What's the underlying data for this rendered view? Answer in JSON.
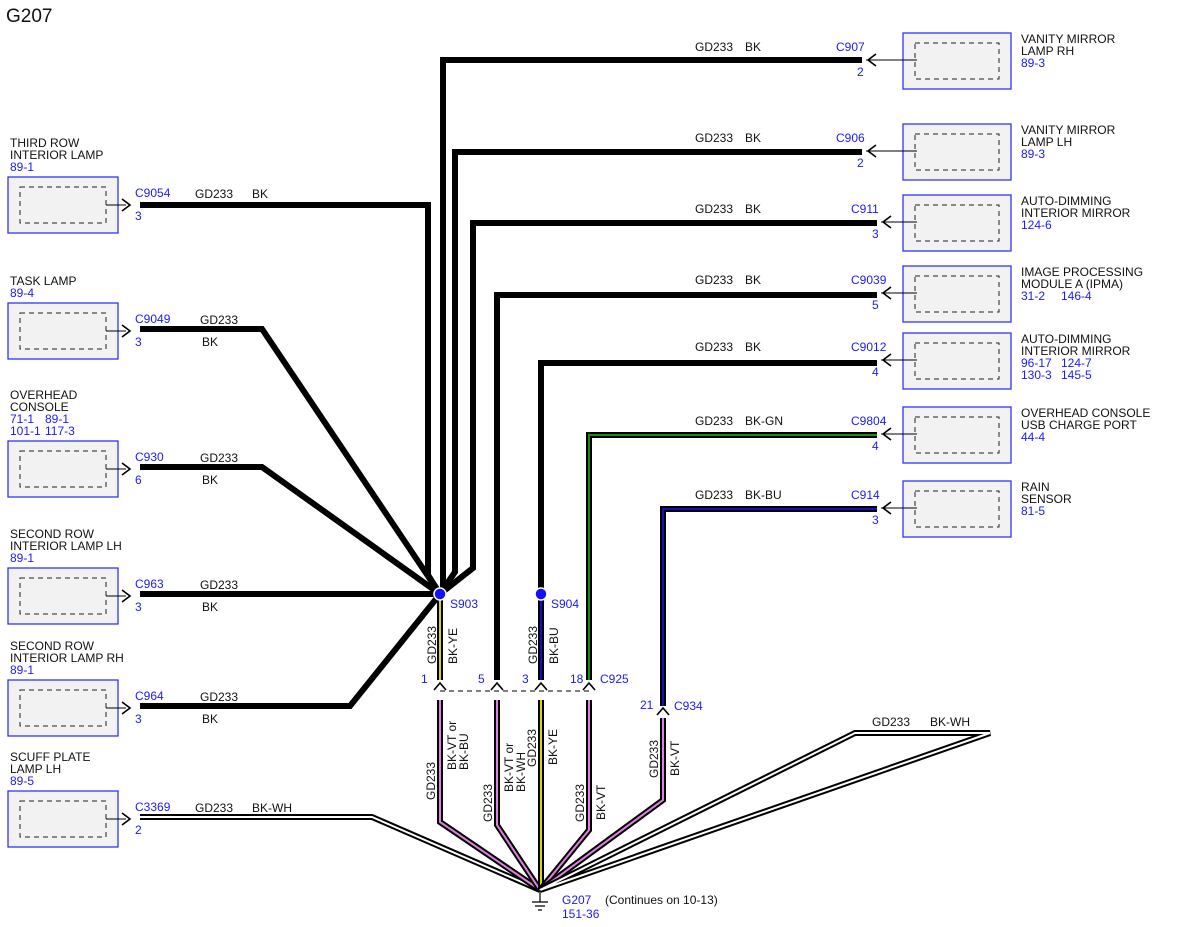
{
  "title": "G207",
  "colors": {
    "BK": "#000000",
    "YE": "#d8d800",
    "BU": "#1010c0",
    "GN": "#1a8a1a",
    "VT": "#e080e0",
    "WH": "#ffffff",
    "ref": "#1a1aff",
    "box_border": "#3333ff",
    "box_fill": "#f2f2f2"
  },
  "left_components": [
    {
      "name": [
        "THIRD ROW",
        "INTERIOR LAMP"
      ],
      "refs": [
        [
          "89-1"
        ]
      ],
      "connector": "C9054",
      "pin": "3",
      "circuit": "GD233",
      "color": "BK"
    },
    {
      "name": [
        "TASK LAMP"
      ],
      "refs": [
        [
          "89-4"
        ]
      ],
      "connector": "C9049",
      "pin": "3",
      "circuit": "GD233",
      "color": "BK"
    },
    {
      "name": [
        "OVERHEAD",
        "CONSOLE"
      ],
      "refs": [
        [
          "71-1",
          "89-1"
        ],
        [
          "101-1",
          "117-3"
        ]
      ],
      "connector": "C930",
      "pin": "6",
      "circuit": "GD233",
      "color": "BK"
    },
    {
      "name": [
        "SECOND ROW",
        "INTERIOR LAMP LH"
      ],
      "refs": [
        [
          "89-1"
        ]
      ],
      "connector": "C963",
      "pin": "3",
      "circuit": "GD233",
      "color": "BK"
    },
    {
      "name": [
        "SECOND ROW",
        "INTERIOR LAMP RH"
      ],
      "refs": [
        [
          "89-1"
        ]
      ],
      "connector": "C964",
      "pin": "3",
      "circuit": "GD233",
      "color": "BK"
    },
    {
      "name": [
        "SCUFF PLATE",
        "LAMP LH"
      ],
      "refs": [
        [
          "89-5"
        ]
      ],
      "connector": "C3369",
      "pin": "2",
      "circuit": "GD233",
      "color": "BK-WH"
    }
  ],
  "right_components": [
    {
      "name": [
        "VANITY MIRROR",
        "LAMP RH"
      ],
      "refs": [
        [
          "89-3"
        ]
      ],
      "connector": "C907",
      "pin": "2",
      "circuit": "GD233",
      "color": "BK"
    },
    {
      "name": [
        "VANITY MIRROR",
        "LAMP LH"
      ],
      "refs": [
        [
          "89-3"
        ]
      ],
      "connector": "C906",
      "pin": "2",
      "circuit": "GD233",
      "color": "BK"
    },
    {
      "name": [
        "AUTO-DIMMING",
        "INTERIOR MIRROR"
      ],
      "refs": [
        [
          "124-6"
        ]
      ],
      "connector": "C911",
      "pin": "3",
      "circuit": "GD233",
      "color": "BK"
    },
    {
      "name": [
        "IMAGE PROCESSING",
        "MODULE A (IPMA)"
      ],
      "refs": [
        [
          "31-2",
          "146-4"
        ]
      ],
      "connector": "C9039",
      "pin": "5",
      "circuit": "GD233",
      "color": "BK"
    },
    {
      "name": [
        "AUTO-DIMMING",
        "INTERIOR MIRROR"
      ],
      "refs": [
        [
          "96-17",
          "124-7"
        ],
        [
          "130-3",
          "145-5"
        ]
      ],
      "connector": "C9012",
      "pin": "4",
      "circuit": "GD233",
      "color": "BK"
    },
    {
      "name": [
        "OVERHEAD CONSOLE",
        "USB CHARGE PORT"
      ],
      "refs": [
        [
          "44-4"
        ]
      ],
      "connector": "C9804",
      "pin": "4",
      "circuit": "GD233",
      "color": "BK-GN"
    },
    {
      "name": [
        "RAIN",
        "SENSOR"
      ],
      "refs": [
        [
          "81-5"
        ]
      ],
      "connector": "C914",
      "pin": "3",
      "circuit": "GD233",
      "color": "BK-BU"
    }
  ],
  "splices": [
    {
      "id": "S903",
      "circuit": "GD233",
      "color": "BK-YE"
    },
    {
      "id": "S904",
      "circuit": "GD233",
      "color": "BK-BU"
    }
  ],
  "inline_connectors": [
    {
      "id": "C925",
      "pins": [
        "1",
        "5",
        "3",
        "18"
      ]
    },
    {
      "id": "C934",
      "pins": [
        "21"
      ]
    }
  ],
  "lower_wires": [
    {
      "circuit": "GD233",
      "color_lines": [
        "BK-VT or",
        "BK-BU"
      ],
      "color": "BK-VT"
    },
    {
      "circuit": "GD233",
      "color_lines": [
        "BK-VT or",
        "BK-WH"
      ],
      "color": "BK-VT"
    },
    {
      "circuit": "GD233",
      "color_lines": [
        "BK-YE"
      ],
      "color": "BK-YE"
    },
    {
      "circuit": "GD233",
      "color_lines": [
        "BK-VT"
      ],
      "color": "BK-VT"
    },
    {
      "circuit": "GD233",
      "color_lines": [
        "BK-VT"
      ],
      "color": "BK-VT"
    }
  ],
  "loop_wire": {
    "circuit": "GD233",
    "color": "BK-WH"
  },
  "ground": {
    "id": "G207",
    "ref": "151-36",
    "note": "(Continues on 10-13)"
  }
}
